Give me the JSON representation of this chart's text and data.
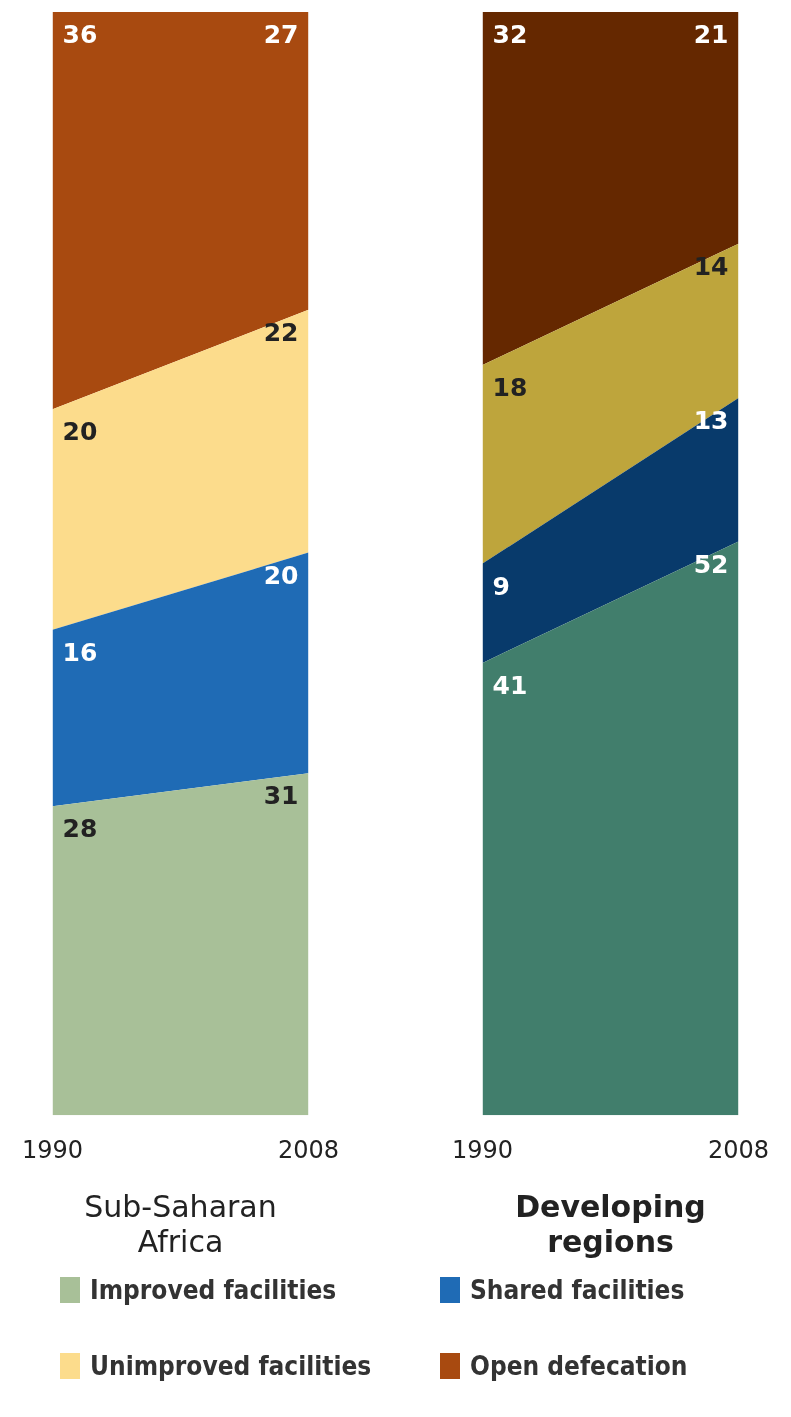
{
  "chart_data": [
    {
      "type": "area",
      "stacked": true,
      "xlabel": "Sub-Saharan Africa",
      "categories": [
        "1990",
        "2008"
      ],
      "tick_labels": "x",
      "grid": false,
      "data_labels": true,
      "legend": "bottom",
      "series": [
        {
          "name": "Improved facilities",
          "color": "#a8c098",
          "values": [
            28,
            31
          ]
        },
        {
          "name": "Shared facilities",
          "color": "#1f6bb5",
          "values": [
            16,
            20
          ]
        },
        {
          "name": "Unimproved facilities",
          "color": "#fcdc8c",
          "values": [
            20,
            22
          ]
        },
        {
          "name": "Open defecation",
          "color": "#a84a10",
          "values": [
            36,
            27
          ]
        }
      ]
    },
    {
      "type": "area",
      "stacked": true,
      "xlabel": "Developing regions",
      "categories": [
        "1990",
        "2008"
      ],
      "tick_labels": "x",
      "grid": false,
      "data_labels": true,
      "series": [
        {
          "color": "#417e6c",
          "values": [
            41,
            52
          ]
        },
        {
          "color": "#083a6b",
          "values": [
            9,
            13
          ]
        },
        {
          "color": "#bea53c",
          "values": [
            18,
            14
          ]
        },
        {
          "color": "#652800",
          "values": [
            32,
            21
          ]
        }
      ]
    }
  ]
}
